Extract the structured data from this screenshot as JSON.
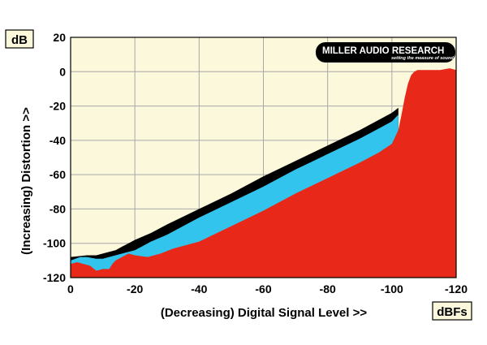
{
  "chart_data": {
    "type": "area",
    "x_label": "(Decreasing) Digital Signal Level >>",
    "y_label": "(Increasing) Distortion >>",
    "x_unit": "dBFs",
    "y_unit": "dB",
    "xlim": [
      0,
      -120
    ],
    "ylim": [
      -120,
      20
    ],
    "x_ticks": [
      "0",
      "-20",
      "-40",
      "-60",
      "-80",
      "-100",
      "-120"
    ],
    "y_ticks": [
      "20",
      "0",
      "-20",
      "-40",
      "-60",
      "-80",
      "-100",
      "-120"
    ],
    "grid": true,
    "logo": {
      "name": "MILLER AUDIO RESEARCH",
      "tagline": "setting the measure of sound quality"
    },
    "colors": {
      "background": "#fbf8dc",
      "series_black": "#000000",
      "series_blue": "#33c4ee",
      "series_red": "#e8291a",
      "grid": "#a8a8a8"
    },
    "series": [
      {
        "color": "black",
        "x": [
          0,
          -5,
          -8,
          -10,
          -12,
          -14,
          -16,
          -18,
          -20,
          -25,
          -30,
          -40,
          -50,
          -60,
          -70,
          -80,
          -90,
          -96,
          -100,
          -102
        ],
        "y": [
          -108,
          -107,
          -107,
          -106,
          -105,
          -104,
          -102,
          -100,
          -98,
          -94,
          -89,
          -80,
          -71,
          -61,
          -52,
          -43,
          -34,
          -28,
          -24,
          -21
        ]
      },
      {
        "color": "blue",
        "x": [
          0,
          -3,
          -5,
          -8,
          -10,
          -12,
          -14,
          -16,
          -18,
          -20,
          -25,
          -30,
          -40,
          -50,
          -60,
          -70,
          -80,
          -90,
          -96,
          -100,
          -102
        ],
        "y": [
          -110,
          -108,
          -108,
          -109,
          -109,
          -108,
          -107,
          -106,
          -105,
          -104,
          -99,
          -95,
          -85,
          -76,
          -67,
          -57,
          -48,
          -39,
          -33,
          -29,
          -25
        ]
      },
      {
        "color": "red",
        "x": [
          0,
          -2,
          -4,
          -6,
          -8,
          -10,
          -12,
          -13,
          -14,
          -16,
          -18,
          -20,
          -24,
          -28,
          -32,
          -40,
          -50,
          -60,
          -70,
          -80,
          -90,
          -96,
          -100,
          -102,
          -103,
          -104,
          -105,
          -106,
          -107,
          -108,
          -110,
          -115,
          -118,
          -120
        ],
        "y": [
          -112,
          -111,
          -112,
          -113,
          -116,
          -115,
          -115,
          -112,
          -110,
          -108,
          -106,
          -107,
          -108,
          -106,
          -103,
          -99,
          -90,
          -81,
          -71,
          -62,
          -53,
          -47,
          -42,
          -34,
          -25,
          -15,
          -7,
          -2,
          0,
          1,
          1,
          1,
          2,
          1
        ]
      }
    ]
  }
}
